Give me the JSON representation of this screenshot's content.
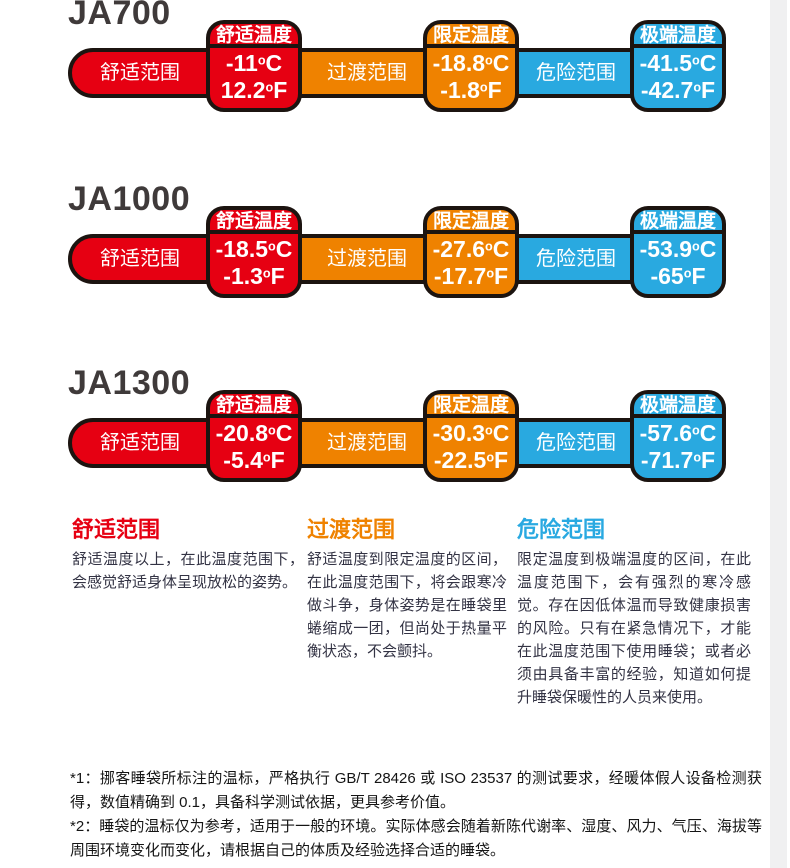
{
  "colors": {
    "comfort_red": "#e60012",
    "transition_orange": "#ef8200",
    "danger_blue": "#29a9e1",
    "outline_black": "#1c1410",
    "model_title_gray": "#3f3a3a",
    "side_strip_gray": "#f0f0f1"
  },
  "units": {
    "degree": "o",
    "celsius": "C",
    "fahrenheit": "F"
  },
  "models": [
    {
      "name": "JA700",
      "segments": [
        "舒适范围",
        "过渡范围",
        "危险范围"
      ],
      "badges": [
        {
          "label": "舒适温度",
          "celsius": "-11",
          "fahrenheit": "12.2"
        },
        {
          "label": "限定温度",
          "celsius": "-18.8",
          "fahrenheit": "-1.8"
        },
        {
          "label": "极端温度",
          "celsius": "-41.5",
          "fahrenheit": "-42.7"
        }
      ]
    },
    {
      "name": "JA1000",
      "segments": [
        "舒适范围",
        "过渡范围",
        "危险范围"
      ],
      "badges": [
        {
          "label": "舒适温度",
          "celsius": "-18.5",
          "fahrenheit": "-1.3"
        },
        {
          "label": "限定温度",
          "celsius": "-27.6",
          "fahrenheit": "-17.7"
        },
        {
          "label": "极端温度",
          "celsius": "-53.9",
          "fahrenheit": "-65"
        }
      ]
    },
    {
      "name": "JA1300",
      "segments": [
        "舒适范围",
        "过渡范围",
        "危险范围"
      ],
      "badges": [
        {
          "label": "舒适温度",
          "celsius": "-20.8",
          "fahrenheit": "-5.4"
        },
        {
          "label": "限定温度",
          "celsius": "-30.3",
          "fahrenheit": "-22.5"
        },
        {
          "label": "极端温度",
          "celsius": "-57.6",
          "fahrenheit": "-71.7"
        }
      ]
    }
  ],
  "legend": [
    {
      "title": "舒适范围",
      "text": "舒适温度以上，在此温度范围下，会感觉舒适身体呈现放松的姿势。"
    },
    {
      "title": "过渡范围",
      "text": "舒适温度到限定温度的区间，在此温度范围下，将会跟寒冷做斗争，身体姿势是在睡袋里蜷缩成一团，但尚处于热量平衡状态，不会颤抖。"
    },
    {
      "title": "危险范围",
      "text": "限定温度到极端温度的区间，在此温度范围下，会有强烈的寒冷感觉。存在因低体温而导致健康损害的风险。只有在紧急情况下，才能在此温度范围下使用睡袋；或者必须由具备丰富的经验，知道如何提升睡袋保暖性的人员来使用。"
    }
  ],
  "footnotes": [
    "*1：挪客睡袋所标注的温标，严格执行 GB/T 28426 或 ISO 23537 的测试要求，经暖体假人设备检测获得，数值精确到 0.1，具备科学测试依据，更具参考价值。",
    "*2：睡袋的温标仅为参考，适用于一般的环境。实际体感会随着新陈代谢率、湿度、风力、气压、海拔等周围环境变化而变化，请根据自己的体质及经验选择合适的睡袋。"
  ]
}
